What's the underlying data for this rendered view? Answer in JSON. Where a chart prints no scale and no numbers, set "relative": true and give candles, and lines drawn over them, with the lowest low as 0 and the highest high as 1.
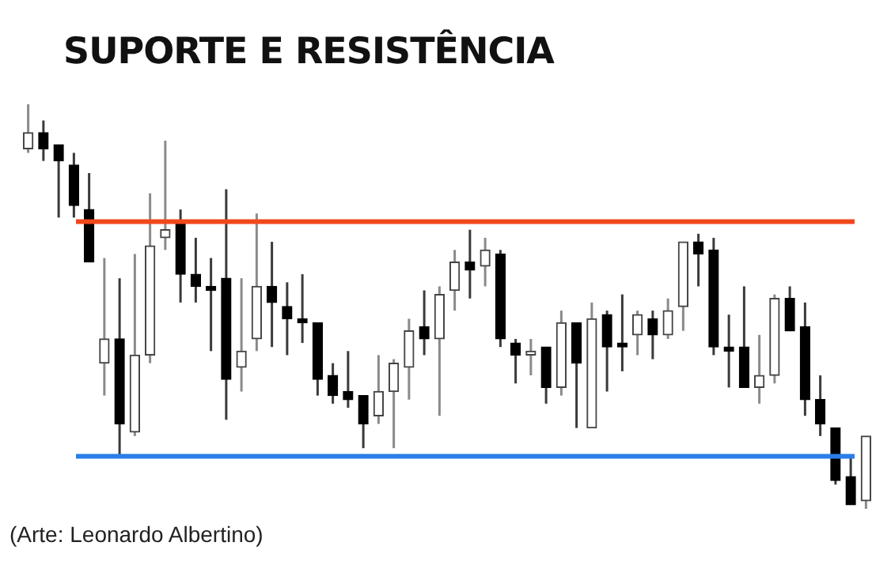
{
  "chart_data": {
    "type": "candlestick",
    "title": "SUPORTE E RESISTÊNCIA",
    "relative": true,
    "categories": [
      null,
      null,
      null,
      null,
      null,
      null,
      null,
      null,
      null,
      null,
      null,
      null,
      null,
      null,
      null,
      null,
      null,
      null,
      null,
      null,
      null,
      null,
      null,
      null,
      null,
      null,
      null,
      null,
      null,
      null,
      null,
      null,
      null,
      null,
      null,
      null,
      null,
      null,
      null,
      null,
      null,
      null,
      null,
      null,
      null,
      null,
      null,
      null,
      null,
      null,
      null,
      null,
      null,
      null,
      null,
      null
    ],
    "ohlc": [
      [
        0.89,
        1.0,
        0.88,
        0.93
      ],
      [
        0.93,
        0.96,
        0.86,
        0.89
      ],
      [
        0.9,
        0.9,
        0.72,
        0.86
      ],
      [
        0.85,
        0.88,
        0.72,
        0.75
      ],
      [
        0.74,
        0.83,
        0.61,
        0.61
      ],
      [
        0.36,
        0.62,
        0.28,
        0.42
      ],
      [
        0.42,
        0.57,
        0.13,
        0.21
      ],
      [
        0.19,
        0.63,
        0.18,
        0.38
      ],
      [
        0.38,
        0.78,
        0.36,
        0.65
      ],
      [
        0.67,
        0.91,
        0.64,
        0.69
      ],
      [
        0.71,
        0.74,
        0.51,
        0.58
      ],
      [
        0.58,
        0.67,
        0.51,
        0.55
      ],
      [
        0.55,
        0.62,
        0.39,
        0.54
      ],
      [
        0.57,
        0.79,
        0.22,
        0.32
      ],
      [
        0.35,
        0.57,
        0.29,
        0.39
      ],
      [
        0.42,
        0.73,
        0.39,
        0.55
      ],
      [
        0.55,
        0.66,
        0.4,
        0.51
      ],
      [
        0.5,
        0.56,
        0.38,
        0.47
      ],
      [
        0.47,
        0.58,
        0.41,
        0.46
      ],
      [
        0.46,
        0.46,
        0.28,
        0.32
      ],
      [
        0.33,
        0.36,
        0.26,
        0.28
      ],
      [
        0.29,
        0.39,
        0.25,
        0.27
      ],
      [
        0.28,
        0.28,
        0.15,
        0.21
      ],
      [
        0.23,
        0.38,
        0.21,
        0.29
      ],
      [
        0.29,
        0.37,
        0.15,
        0.36
      ],
      [
        0.35,
        0.47,
        0.27,
        0.44
      ],
      [
        0.45,
        0.54,
        0.38,
        0.42
      ],
      [
        0.42,
        0.55,
        0.23,
        0.53
      ],
      [
        0.54,
        0.64,
        0.49,
        0.61
      ],
      [
        0.61,
        0.69,
        0.52,
        0.59
      ],
      [
        0.6,
        0.67,
        0.55,
        0.64
      ],
      [
        0.63,
        0.64,
        0.4,
        0.42
      ],
      [
        0.41,
        0.42,
        0.31,
        0.38
      ],
      [
        0.38,
        0.42,
        0.33,
        0.39
      ],
      [
        0.4,
        0.4,
        0.26,
        0.3
      ],
      [
        0.3,
        0.49,
        0.28,
        0.46
      ],
      [
        0.46,
        0.46,
        0.2,
        0.36
      ],
      [
        0.2,
        0.51,
        0.2,
        0.47
      ],
      [
        0.48,
        0.49,
        0.29,
        0.4
      ],
      [
        0.41,
        0.53,
        0.34,
        0.4
      ],
      [
        0.43,
        0.49,
        0.38,
        0.48
      ],
      [
        0.47,
        0.49,
        0.37,
        0.43
      ],
      [
        0.43,
        0.52,
        0.42,
        0.49
      ],
      [
        0.5,
        0.66,
        0.44,
        0.66
      ],
      [
        0.66,
        0.68,
        0.55,
        0.63
      ],
      [
        0.64,
        0.67,
        0.38,
        0.4
      ],
      [
        0.4,
        0.48,
        0.3,
        0.39
      ],
      [
        0.4,
        0.55,
        0.3,
        0.3
      ],
      [
        0.3,
        0.43,
        0.26,
        0.33
      ],
      [
        0.33,
        0.53,
        0.31,
        0.52
      ],
      [
        0.52,
        0.55,
        0.44,
        0.44
      ],
      [
        0.45,
        0.51,
        0.23,
        0.27
      ],
      [
        0.27,
        0.33,
        0.18,
        0.21
      ],
      [
        0.2,
        0.2,
        0.06,
        0.07
      ],
      [
        0.08,
        0.13,
        0.01,
        0.01
      ],
      [
        0.02,
        0.18,
        0,
        0.18
      ]
    ],
    "ref_lines": [
      {
        "axis": "y",
        "value": 0.71,
        "color": "#f1471d"
      },
      {
        "axis": "y",
        "value": 0.13,
        "color": "#2a7fe8"
      }
    ],
    "annotations": [
      "(Arte: Leonardo Albertino)"
    ]
  }
}
